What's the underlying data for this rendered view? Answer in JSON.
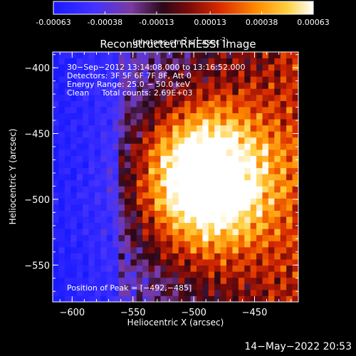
{
  "colorbar": {
    "ticks": [
      "-0.00063",
      "-0.00038",
      "-0.00013",
      "0.00013",
      "0.00038",
      "0.00063"
    ],
    "tick_values": [
      -0.00063,
      -0.00038,
      -0.00013,
      0.00013,
      0.00038,
      0.00063
    ],
    "units": "(photons cm",
    "units_sup1": "-2",
    "units_mid": " s",
    "units_sup2": "-1",
    "units_end": " asec",
    "units_sup3": "-2",
    "units_close": ")",
    "colors": [
      "#2222ff",
      "#4a33ff",
      "#6a3aa8",
      "#2a0a1a",
      "#8a1010",
      "#e63a00",
      "#ff9a00",
      "#ffe060",
      "#ffffff"
    ]
  },
  "chart_data": {
    "type": "heatmap",
    "title": "Reconstructed RHESSI Image",
    "xlabel": "Heliocentric X (arcsec)",
    "ylabel": "Heliocentric Y (arcsec)",
    "xlim": [
      -616,
      -414
    ],
    "ylim": [
      -578,
      -388
    ],
    "xticks": [
      -600,
      -550,
      -500,
      -450
    ],
    "xtick_labels": [
      "−600",
      "−550",
      "−500",
      "−450"
    ],
    "yticks": [
      -400,
      -450,
      -500,
      -550
    ],
    "ytick_labels": [
      "−400",
      "−450",
      "−500",
      "−550"
    ],
    "peak": {
      "x": -492,
      "y": -485
    },
    "grid": "off"
  },
  "annotations": {
    "line1": "30−Sep−2012 13:14:08.000 to 13:16:52.000",
    "line2": "Detectors: 3F 5F 6F 7F 8F, Att 0",
    "line3": "Energy Range: 25.0 − 50.0 keV",
    "line4": "Clean     Total counts: 2.69E+03",
    "peak_label": "Position of Peak = [−492,−485]"
  },
  "footer": {
    "date": "14−May−2022 20:53"
  }
}
